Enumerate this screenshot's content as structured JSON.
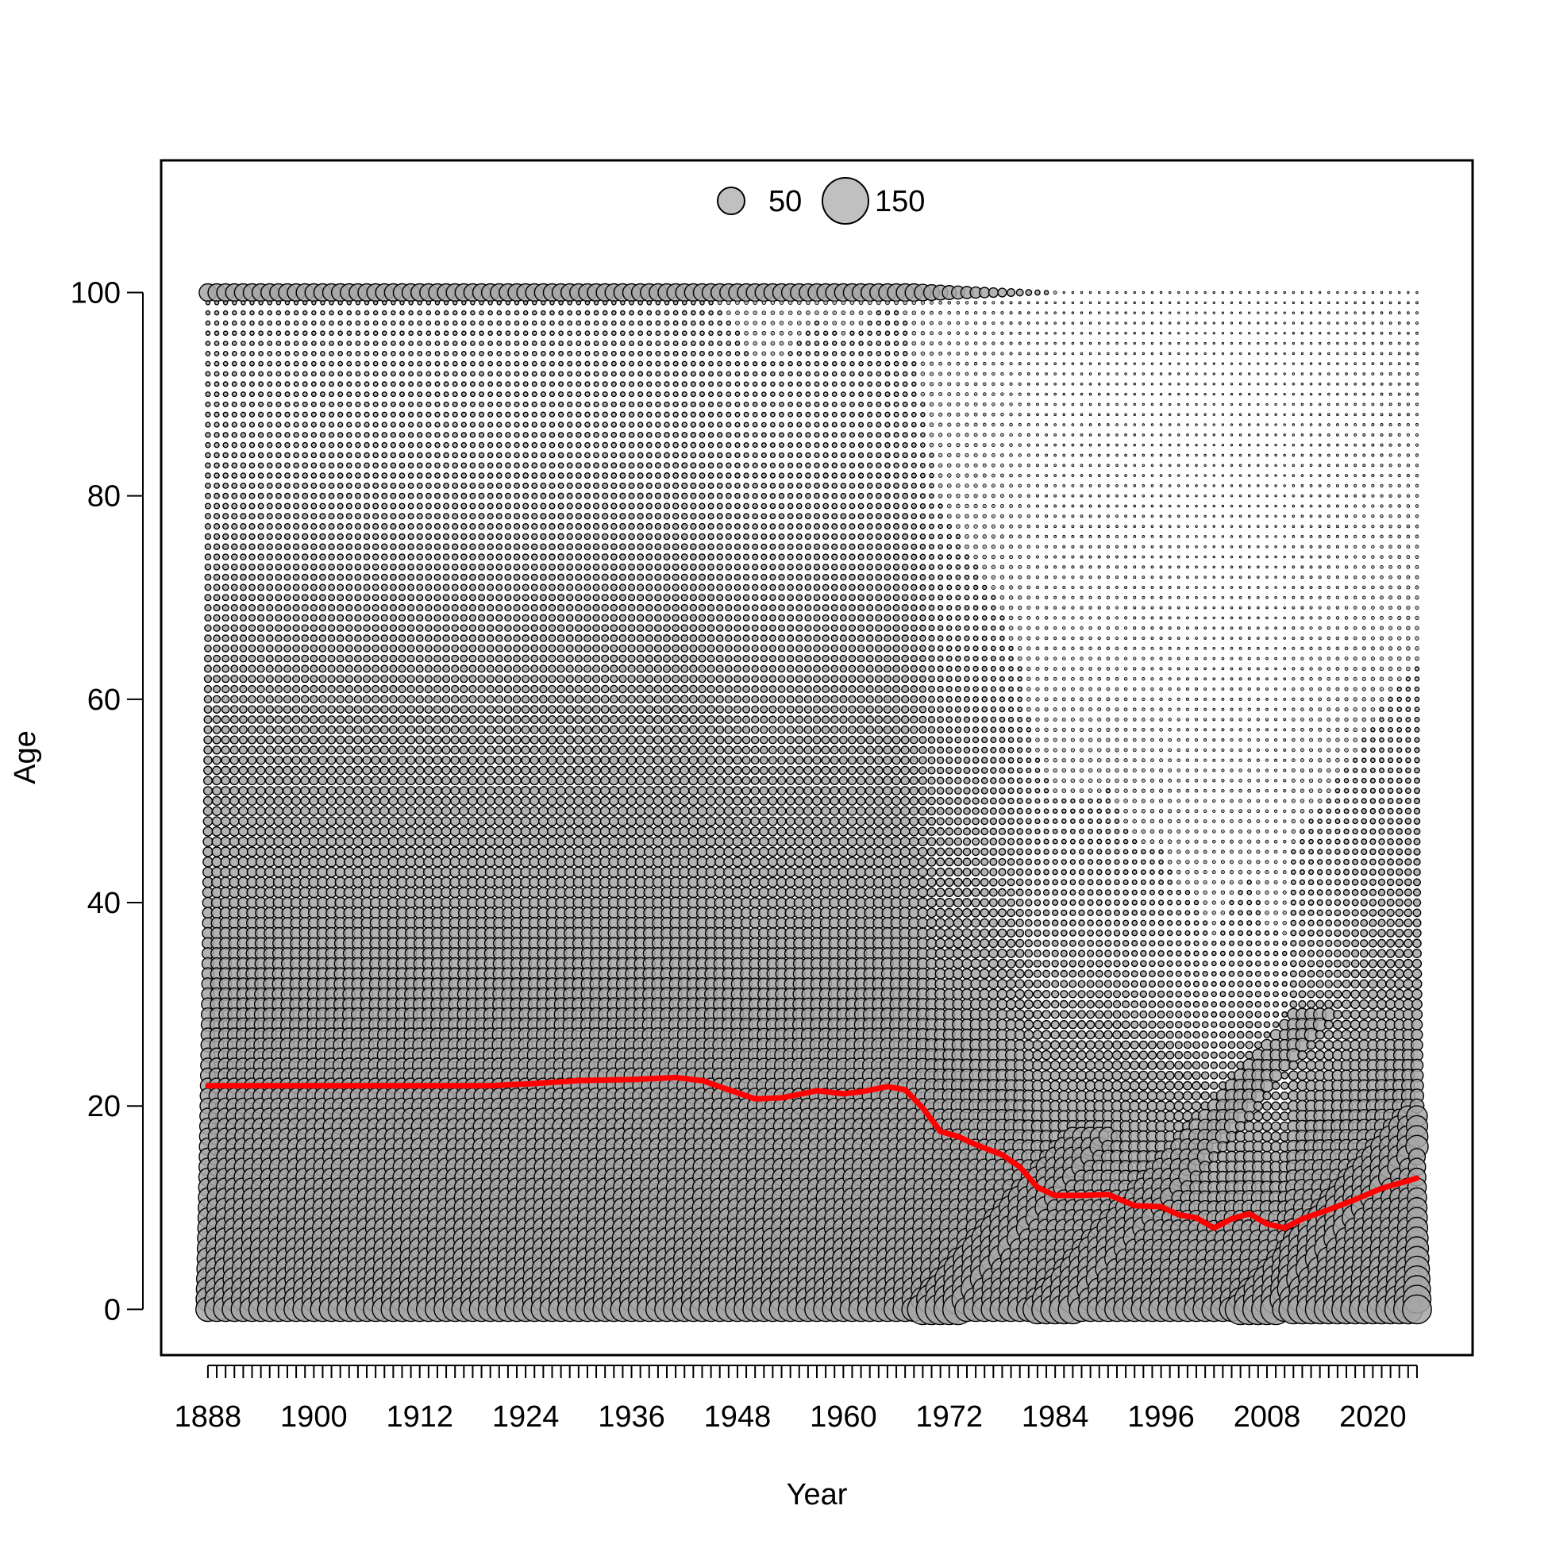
{
  "chart_data": {
    "type": "scatter",
    "subtype": "bubble",
    "title": "",
    "xlabel": "Year",
    "ylabel": "Age",
    "xlim": [
      1882.7,
      2031.3
    ],
    "ylim": [
      -4.5,
      113
    ],
    "x_ticks": [
      1888,
      1900,
      1912,
      1924,
      1936,
      1948,
      1960,
      1972,
      1984,
      1996,
      2008,
      2020
    ],
    "x_minor_tick_step": 1,
    "x_first_year": 1888,
    "x_last_year": 2025,
    "y_ticks": [
      0,
      20,
      40,
      60,
      80,
      100
    ],
    "age_min": 0,
    "age_max": 100,
    "bubble_fill": "#a6a6a6",
    "bubble_stroke": "#000000",
    "line_color": "#ff0000",
    "grid": false,
    "legend": {
      "placement": "top-center",
      "entries": [
        {
          "label": "50",
          "value": 50
        },
        {
          "label": "150",
          "value": 150
        }
      ]
    },
    "mean_age_series": {
      "points": [
        [
          1888,
          22.0
        ],
        [
          1900,
          22.0
        ],
        [
          1912,
          22.0
        ],
        [
          1920,
          22.0
        ],
        [
          1925,
          22.2
        ],
        [
          1930,
          22.5
        ],
        [
          1936,
          22.6
        ],
        [
          1941,
          22.8
        ],
        [
          1944,
          22.5
        ],
        [
          1948,
          21.3
        ],
        [
          1950,
          20.7
        ],
        [
          1953,
          20.8
        ],
        [
          1957,
          21.5
        ],
        [
          1960,
          21.2
        ],
        [
          1962,
          21.4
        ],
        [
          1965,
          21.9
        ],
        [
          1967,
          21.6
        ],
        [
          1969,
          19.8
        ],
        [
          1971,
          17.5
        ],
        [
          1973,
          17.0
        ],
        [
          1975,
          16.2
        ],
        [
          1978,
          15.2
        ],
        [
          1980,
          14.0
        ],
        [
          1982,
          12.0
        ],
        [
          1984,
          11.2
        ],
        [
          1987,
          11.2
        ],
        [
          1990,
          11.3
        ],
        [
          1993,
          10.2
        ],
        [
          1996,
          10.1
        ],
        [
          1998,
          9.3
        ],
        [
          2000,
          9.0
        ],
        [
          2002,
          8.0
        ],
        [
          2004,
          8.9
        ],
        [
          2006,
          9.4
        ],
        [
          2008,
          8.4
        ],
        [
          2010,
          8.0
        ],
        [
          2012,
          8.9
        ],
        [
          2015,
          9.8
        ],
        [
          2018,
          10.8
        ],
        [
          2021,
          11.9
        ],
        [
          2025,
          12.9
        ]
      ]
    }
  }
}
